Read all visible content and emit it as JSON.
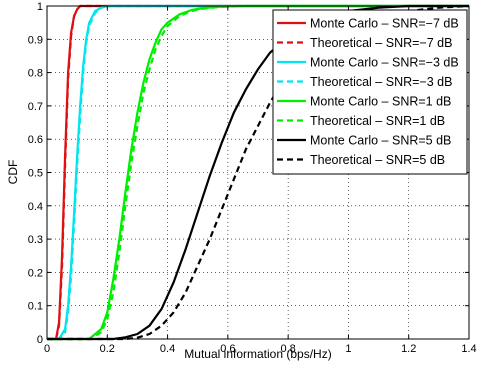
{
  "chart_data": {
    "type": "line",
    "title": "",
    "xlabel": "Mutual information (bps/Hz)",
    "ylabel": "CDF",
    "xlim": [
      0,
      1.4
    ],
    "ylim": [
      0,
      1
    ],
    "x_ticks": [
      "0",
      "0.2",
      "0.4",
      "0.6",
      "0.8",
      "1",
      "1.2",
      "1.4"
    ],
    "y_ticks": [
      "0",
      "0.1",
      "0.2",
      "0.3",
      "0.4",
      "0.5",
      "0.6",
      "0.7",
      "0.8",
      "0.9",
      "1"
    ],
    "grid": "dotted",
    "legend_position": "top-right",
    "series": [
      {
        "name": "Monte Carlo – SNR=−7 dB",
        "color": "#dd1111",
        "dash": "solid",
        "x": [
          0.0,
          0.03,
          0.04,
          0.05,
          0.06,
          0.07,
          0.08,
          0.09,
          0.1,
          0.11,
          0.12,
          0.14,
          1.4
        ],
        "y": [
          0.0,
          0.0,
          0.05,
          0.25,
          0.55,
          0.8,
          0.92,
          0.97,
          0.99,
          1.0,
          1.0,
          1.0,
          1.0
        ]
      },
      {
        "name": "Theoretical – SNR=−7 dB",
        "color": "#dd1111",
        "dash": "dashed",
        "x": [
          0.0,
          0.03,
          0.04,
          0.05,
          0.06,
          0.07,
          0.08,
          0.09,
          0.1,
          0.11,
          0.12,
          0.14,
          1.4
        ],
        "y": [
          0.0,
          0.0,
          0.04,
          0.22,
          0.52,
          0.78,
          0.91,
          0.97,
          0.99,
          1.0,
          1.0,
          1.0,
          1.0
        ]
      },
      {
        "name": "Monte Carlo – SNR=−3 dB",
        "color": "#00e5ee",
        "dash": "solid",
        "x": [
          0.0,
          0.04,
          0.06,
          0.07,
          0.08,
          0.09,
          0.1,
          0.11,
          0.12,
          0.13,
          0.14,
          0.16,
          0.18,
          0.2,
          0.24,
          1.4
        ],
        "y": [
          0.0,
          0.0,
          0.03,
          0.1,
          0.22,
          0.38,
          0.55,
          0.7,
          0.82,
          0.9,
          0.95,
          0.985,
          0.995,
          1.0,
          1.0,
          1.0
        ]
      },
      {
        "name": "Theoretical – SNR=−3 dB",
        "color": "#00e5ee",
        "dash": "dashed",
        "x": [
          0.0,
          0.04,
          0.06,
          0.07,
          0.08,
          0.09,
          0.1,
          0.11,
          0.12,
          0.13,
          0.14,
          0.16,
          0.18,
          0.2,
          0.24,
          1.4
        ],
        "y": [
          0.0,
          0.0,
          0.02,
          0.08,
          0.19,
          0.35,
          0.52,
          0.67,
          0.8,
          0.89,
          0.94,
          0.98,
          0.995,
          1.0,
          1.0,
          1.0
        ]
      },
      {
        "name": "Monte Carlo – SNR=1 dB",
        "color": "#00ee00",
        "dash": "solid",
        "x": [
          0.0,
          0.14,
          0.18,
          0.2,
          0.22,
          0.24,
          0.26,
          0.28,
          0.3,
          0.32,
          0.34,
          0.36,
          0.38,
          0.4,
          0.44,
          0.48,
          0.52,
          0.56,
          0.6,
          0.66,
          0.72,
          1.4
        ],
        "y": [
          0.0,
          0.0,
          0.03,
          0.08,
          0.18,
          0.3,
          0.44,
          0.57,
          0.68,
          0.77,
          0.84,
          0.89,
          0.93,
          0.95,
          0.975,
          0.988,
          0.994,
          0.997,
          0.999,
          1.0,
          1.0,
          1.0
        ]
      },
      {
        "name": "Theoretical – SNR=1 dB",
        "color": "#00ee00",
        "dash": "dashed",
        "x": [
          0.0,
          0.14,
          0.18,
          0.2,
          0.22,
          0.24,
          0.26,
          0.28,
          0.3,
          0.32,
          0.34,
          0.36,
          0.38,
          0.4,
          0.44,
          0.48,
          0.52,
          0.56,
          0.6,
          0.66,
          0.72,
          1.4
        ],
        "y": [
          0.0,
          0.0,
          0.02,
          0.06,
          0.14,
          0.26,
          0.4,
          0.53,
          0.64,
          0.74,
          0.81,
          0.87,
          0.91,
          0.94,
          0.97,
          0.985,
          0.992,
          0.996,
          0.998,
          1.0,
          1.0,
          1.0
        ]
      },
      {
        "name": "Monte Carlo – SNR=5 dB",
        "color": "#000000",
        "dash": "solid",
        "x": [
          0.0,
          0.22,
          0.26,
          0.3,
          0.34,
          0.38,
          0.42,
          0.46,
          0.5,
          0.54,
          0.58,
          0.62,
          0.66,
          0.7,
          0.74,
          0.78,
          0.82,
          0.86,
          0.9,
          0.95,
          1.0,
          1.1,
          1.2,
          1.4
        ],
        "y": [
          0.0,
          0.0,
          0.005,
          0.015,
          0.04,
          0.09,
          0.17,
          0.27,
          0.38,
          0.49,
          0.59,
          0.68,
          0.75,
          0.81,
          0.86,
          0.89,
          0.92,
          0.94,
          0.96,
          0.975,
          0.985,
          0.995,
          1.0,
          1.0
        ]
      },
      {
        "name": "Theoretical – SNR=5 dB",
        "color": "#000000",
        "dash": "dashed",
        "x": [
          0.0,
          0.26,
          0.3,
          0.34,
          0.38,
          0.42,
          0.46,
          0.5,
          0.54,
          0.58,
          0.62,
          0.66,
          0.7,
          0.74,
          0.78,
          0.82,
          0.86,
          0.9,
          0.95,
          1.0,
          1.1,
          1.2,
          1.3,
          1.4
        ],
        "y": [
          0.0,
          0.0,
          0.004,
          0.015,
          0.04,
          0.08,
          0.14,
          0.22,
          0.3,
          0.39,
          0.48,
          0.57,
          0.64,
          0.71,
          0.77,
          0.82,
          0.86,
          0.89,
          0.92,
          0.94,
          0.97,
          0.985,
          0.995,
          1.0
        ]
      }
    ]
  }
}
